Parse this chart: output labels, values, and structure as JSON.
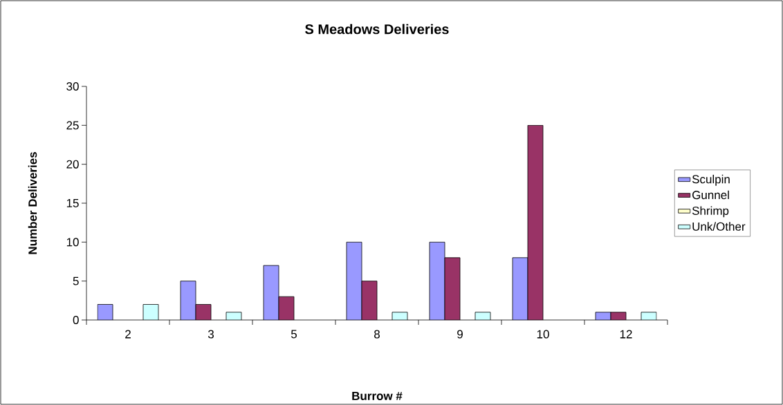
{
  "chart_data": {
    "type": "bar",
    "title": "S Meadows Deliveries",
    "xlabel": "Burrow #",
    "ylabel": "Number Deliveries",
    "categories": [
      "2",
      "3",
      "5",
      "8",
      "9",
      "10",
      "12"
    ],
    "series": [
      {
        "name": "Sculpin",
        "color": "#9999ff",
        "values": [
          2,
          5,
          7,
          10,
          10,
          8,
          1
        ]
      },
      {
        "name": "Gunnel",
        "color": "#993366",
        "values": [
          null,
          2,
          3,
          5,
          8,
          25,
          1
        ]
      },
      {
        "name": "Shrimp",
        "color": "#ffffcc",
        "values": [
          null,
          null,
          null,
          null,
          null,
          null,
          null
        ]
      },
      {
        "name": "Unk/Other",
        "color": "#ccffff",
        "values": [
          2,
          1,
          null,
          1,
          1,
          null,
          1
        ]
      }
    ],
    "ylim": [
      0,
      30
    ],
    "yticks": [
      0,
      5,
      10,
      15,
      20,
      25,
      30
    ],
    "legend": "right"
  }
}
